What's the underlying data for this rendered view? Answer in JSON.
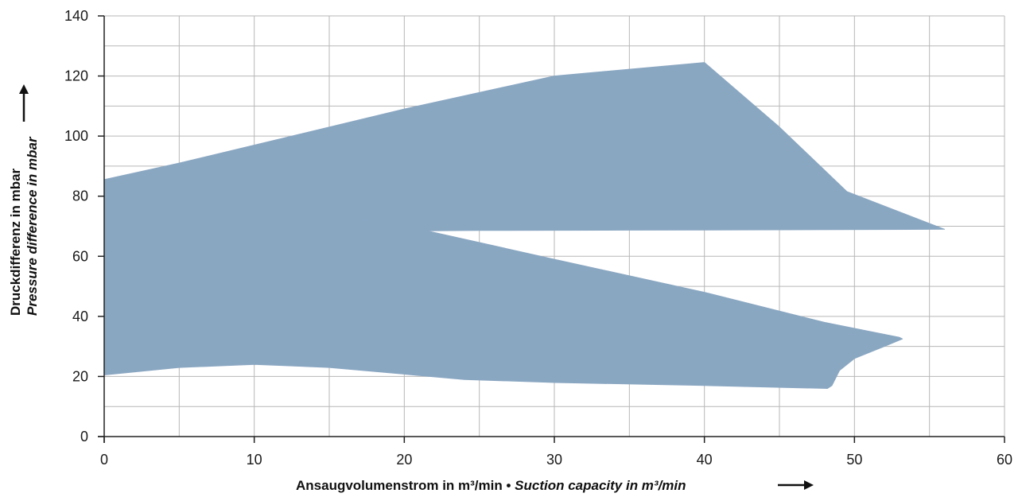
{
  "chart_data": {
    "type": "area",
    "xlabel": "Ansaugvolumenstrom in m³/min",
    "xlabel_separator": " • ",
    "xlabel_en": "Suction capacity  in m³/min",
    "ylabel": "Druckdifferenz in mbar",
    "ylabel_en": "Pressure difference in mbar",
    "xlim": [
      0,
      60
    ],
    "ylim": [
      0,
      140
    ],
    "x_ticks": [
      0,
      10,
      20,
      30,
      40,
      50,
      60
    ],
    "y_ticks": [
      0,
      20,
      40,
      60,
      80,
      100,
      120,
      140
    ],
    "grid": true,
    "grid_x_step": 5,
    "grid_y_step": 10,
    "fill_color": "#8aa7c2",
    "axis_color": "#222222",
    "grid_color": "#b7b7b7",
    "series": [
      {
        "x": [
          0,
          5,
          10,
          20,
          30,
          40,
          45,
          49.5,
          56,
          45,
          35,
          25,
          21.5
        ],
        "y": [
          85.5,
          91,
          97,
          109,
          120,
          124.5,
          103,
          81.5,
          69,
          68.8,
          68.7,
          68.6,
          68.5
        ]
      },
      {
        "x": [
          21.5,
          30,
          40,
          48,
          51,
          53,
          53.2,
          52,
          50,
          49,
          48.5,
          48.2,
          40,
          30,
          24,
          15,
          10,
          5,
          0,
          0
        ],
        "y": [
          68.5,
          59,
          48,
          38,
          35,
          33,
          32.5,
          30,
          26,
          22,
          17,
          16,
          17,
          18,
          19,
          23,
          24,
          23,
          20.5,
          85.5
        ]
      }
    ]
  }
}
